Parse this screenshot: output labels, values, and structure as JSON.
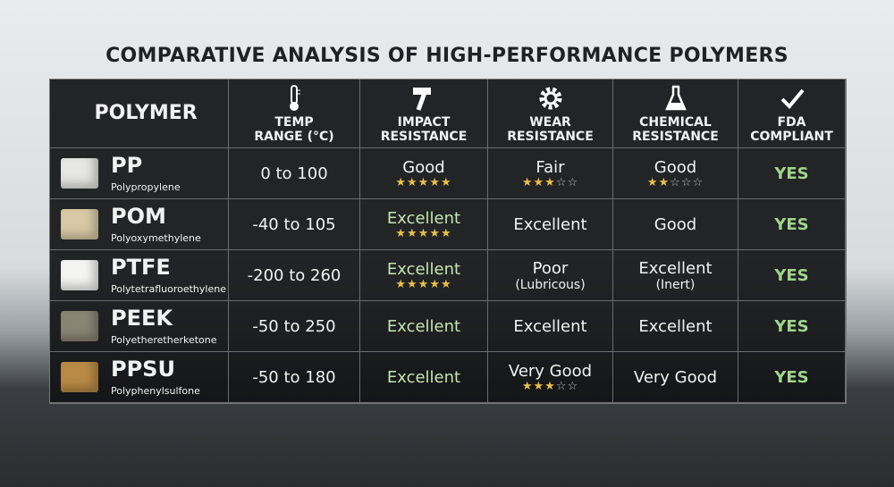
{
  "title": "COMPARATIVE ANALYSIS OF HIGH-PERFORMANCE POLYMERS",
  "table": {
    "header": [
      "POLYMER",
      "TEMP RANGE (°C)",
      "IMPACT RESISTANCE",
      "WEAR RESISTANCE",
      "CHEMICAL RESISTANCE",
      "FDA COMPLIANT"
    ],
    "rows": [
      {
        "name": "PP",
        "full_name": "Polypropylene",
        "color": "#e6e6e2",
        "cells": [
          {
            "text": "0 to 100"
          },
          {
            "text": "Good",
            "stars": 5
          },
          {
            "text": "Fair",
            "stars": 3
          },
          {
            "text": "Good",
            "stars": 2
          },
          {
            "text": "YES",
            "color": "#9fd68a"
          }
        ]
      },
      {
        "name": "POM",
        "full_name": "Polyoxymethylene",
        "color": "#d9c9a6",
        "cells": [
          {
            "text": "-40 to 105"
          },
          {
            "text": "Excellent",
            "stars": 5,
            "color": "#c7e4b0"
          },
          {
            "text": "Excellent"
          },
          {
            "text": "Good"
          },
          {
            "text": "YES",
            "color": "#9fd68a"
          }
        ]
      },
      {
        "name": "PTFE",
        "full_name": "Polytetrafluoroethylene",
        "color": "#f4f4f2",
        "cells": [
          {
            "text": "-200 to 260"
          },
          {
            "text": "Excellent",
            "stars": 5,
            "color": "#c7e4b0"
          },
          {
            "text": "Poor",
            "note": "(Lubricous)"
          },
          {
            "text": "Excellent",
            "note": "(Inert)"
          },
          {
            "text": "YES",
            "color": "#9fd68a"
          }
        ]
      },
      {
        "name": "PEEK",
        "full_name": "Polyetheretherketone",
        "color": "#8a8474",
        "cells": [
          {
            "text": "-50 to 250"
          },
          {
            "text": "Excellent",
            "color": "#c7e4b0"
          },
          {
            "text": "Excellent"
          },
          {
            "text": "Excellent"
          },
          {
            "text": "YES",
            "color": "#9fd68a"
          }
        ]
      },
      {
        "name": "PPSU",
        "full_name": "Polyphenylsulfone",
        "color": "#b88a45",
        "cells": [
          {
            "text": "-50 to 180"
          },
          {
            "text": "Excellent",
            "color": "#c7e4b0"
          },
          {
            "text": "Very Good",
            "stars": 3
          },
          {
            "text": "Very Good"
          },
          {
            "text": "YES",
            "color": "#9fd68a"
          }
        ]
      }
    ]
  }
}
